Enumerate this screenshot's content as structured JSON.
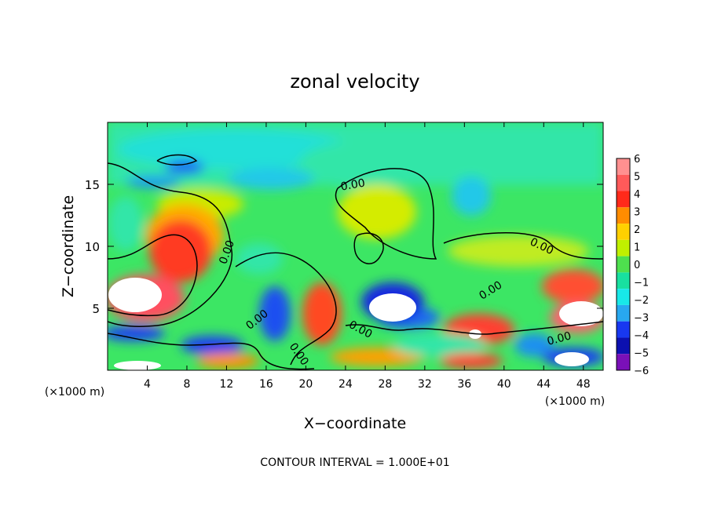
{
  "chart_data": {
    "type": "heatmap",
    "title": "zonal velocity",
    "xlabel": "X−coordinate",
    "ylabel": "Z−coordinate",
    "x_unit_left": "(×1000 m)",
    "x_unit_right": "(×1000 m)",
    "x_ticks": [
      4,
      8,
      12,
      16,
      20,
      24,
      28,
      32,
      36,
      40,
      44,
      48
    ],
    "y_ticks": [
      5,
      10,
      15
    ],
    "xlim": [
      0,
      50
    ],
    "ylim": [
      0,
      20
    ],
    "colorbar": {
      "levels": [
        6,
        5,
        4,
        3,
        2,
        1,
        0,
        -1,
        -2,
        -3,
        -4,
        -5,
        -6
      ],
      "labels": [
        "6",
        "5",
        "4",
        "3",
        "2",
        "1",
        "0",
        "−1",
        "−2",
        "−3",
        "−4",
        "−5",
        "−6"
      ],
      "colors": [
        "#ff9090",
        "#ff5a5a",
        "#ff2a1a",
        "#ff8c00",
        "#ffd000",
        "#c0f000",
        "#4ee04e",
        "#18e0a0",
        "#18e8e8",
        "#28a8f0",
        "#1838f0",
        "#0c10b0",
        "#7a10b8"
      ]
    },
    "contour_labels": [
      "0.00",
      "0.00",
      "0.00",
      "0.00",
      "0.00",
      "0.00",
      "0.00",
      "0.00"
    ],
    "footer": "CONTOUR INTERVAL = 1.000E+01"
  }
}
